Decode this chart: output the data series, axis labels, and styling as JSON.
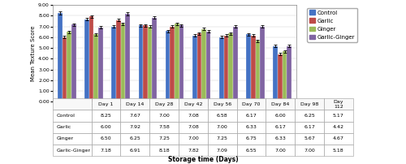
{
  "categories": [
    "Day 1",
    "Day 14",
    "Day 28",
    "Day 42",
    "Day 56",
    "Day 70",
    "Day 84",
    "Day 98",
    "Day\n112"
  ],
  "series_names": [
    "Control",
    "Garlic",
    "Ginger",
    "Garlic-Ginger"
  ],
  "series": {
    "Control": [
      8.25,
      7.67,
      7.0,
      7.08,
      6.58,
      6.17,
      6.0,
      6.25,
      5.17
    ],
    "Garlic": [
      6.0,
      7.92,
      7.58,
      7.08,
      7.0,
      6.33,
      6.17,
      6.17,
      4.42
    ],
    "Ginger": [
      6.5,
      6.25,
      7.25,
      7.0,
      7.25,
      6.75,
      6.33,
      5.67,
      4.67
    ],
    "Garlic-Ginger": [
      7.18,
      6.91,
      8.18,
      7.82,
      7.09,
      6.55,
      7.0,
      7.0,
      5.18
    ]
  },
  "colors": {
    "Control": "#4472C4",
    "Garlic": "#BE4B48",
    "Ginger": "#9BBB59",
    "Garlic-Ginger": "#8064A2"
  },
  "error": 0.12,
  "ylabel": "Mean Texture Score",
  "xlabel": "Storage time (Days)",
  "ylim": [
    0.0,
    9.0
  ],
  "yticks": [
    0.0,
    1.0,
    2.0,
    3.0,
    4.0,
    5.0,
    6.0,
    7.0,
    8.0,
    9.0
  ],
  "table_rows": [
    "Control",
    "Garlic",
    "Ginger",
    "Garlic-Ginger"
  ],
  "table_data": [
    [
      8.25,
      7.67,
      7.0,
      7.08,
      6.58,
      6.17,
      6.0,
      6.25,
      5.17
    ],
    [
      6.0,
      7.92,
      7.58,
      7.08,
      7.0,
      6.33,
      6.17,
      6.17,
      4.42
    ],
    [
      6.5,
      6.25,
      7.25,
      7.0,
      7.25,
      6.75,
      6.33,
      5.67,
      4.67
    ],
    [
      7.18,
      6.91,
      8.18,
      7.82,
      7.09,
      6.55,
      7.0,
      7.0,
      5.18
    ]
  ]
}
